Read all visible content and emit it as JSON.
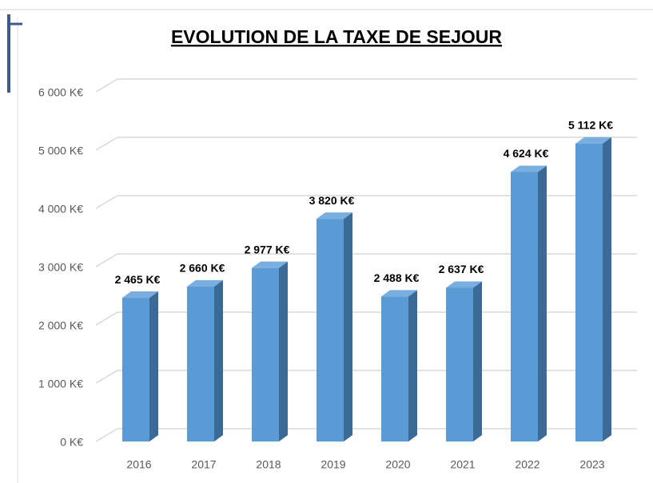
{
  "chart_data": {
    "type": "bar3d",
    "title": "EVOLUTION DE LA TAXE DE SEJOUR",
    "categories": [
      "2016",
      "2017",
      "2018",
      "2019",
      "2020",
      "2021",
      "2022",
      "2023"
    ],
    "values": [
      2465,
      2660,
      2977,
      3820,
      2488,
      2637,
      4624,
      5112
    ],
    "value_labels": [
      "2 465 K€",
      "2 660 K€",
      "2 977 K€",
      "3 820 K€",
      "2 488 K€",
      "2 637 K€",
      "4 624 K€",
      "5 112 K€"
    ],
    "color": "#5b9bd5",
    "ylim": [
      0,
      6000
    ],
    "yticks": [
      {
        "value": 0,
        "label": "0 K€"
      },
      {
        "value": 1000,
        "label": "1 000 K€"
      },
      {
        "value": 2000,
        "label": "2 000 K€"
      },
      {
        "value": 3000,
        "label": "3 000 K€"
      },
      {
        "value": 4000,
        "label": "4 000 K€"
      },
      {
        "value": 5000,
        "label": "5 000 K€"
      },
      {
        "value": 6000,
        "label": "6 000 K€"
      }
    ],
    "grid": true
  }
}
